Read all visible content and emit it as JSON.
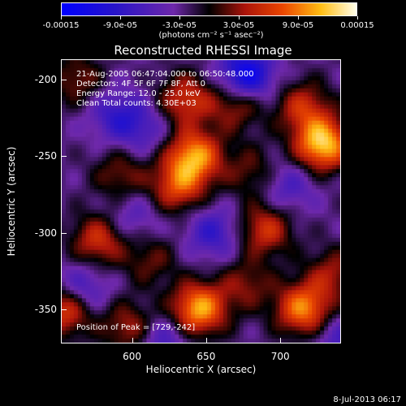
{
  "colorbar": {
    "ticks": [
      "-0.00015",
      "-9.0e-05",
      "-3.0e-05",
      "3.0e-05",
      "9.0e-05",
      "0.00015"
    ],
    "unit": "(photons cm⁻² s⁻¹ asec⁻²)"
  },
  "title": "Reconstructed RHESSI Image",
  "info": {
    "time": "21-Aug-2005 06:47:04.000 to 06:50:48.000",
    "detectors": "Detectors: 4F 5F 6F 7F 8F, Att 0",
    "energy": "Energy Range: 12.0 - 25.0 keV",
    "method": "Clean     Total counts: 4.30E+03"
  },
  "peak_label": "Position of Peak = [729,-242]",
  "footer": "8-Jul-2013 06:17",
  "chart_data": {
    "type": "heatmap",
    "title": "Reconstructed RHESSI Image",
    "xlabel": "Heliocentric X (arcsec)",
    "ylabel": "Heliocentric Y (arcsec)",
    "xlim": [
      552,
      741
    ],
    "ylim": [
      -372,
      -187
    ],
    "xticks": [
      600,
      650,
      700
    ],
    "yticks": [
      -200,
      -250,
      -300,
      -350
    ],
    "colorbar_range": [
      -0.00015,
      0.00015
    ],
    "peak": [
      729,
      -242
    ],
    "colormap": "blue-purple-red-yellow-white",
    "blobs": [
      {
        "x": 729,
        "y": -242,
        "v": 1.0
      },
      {
        "x": 642,
        "y": -250,
        "v": 0.85
      },
      {
        "x": 645,
        "y": -350,
        "v": 0.9
      },
      {
        "x": 716,
        "y": -350,
        "v": 0.8
      },
      {
        "x": 690,
        "y": -298,
        "v": 0.55
      },
      {
        "x": 631,
        "y": -270,
        "v": 0.6
      },
      {
        "x": 716,
        "y": -218,
        "v": 0.5
      },
      {
        "x": 636,
        "y": -213,
        "v": 0.55
      },
      {
        "x": 670,
        "y": -216,
        "v": 0.45
      },
      {
        "x": 577,
        "y": -305,
        "v": 0.55
      },
      {
        "x": 592,
        "y": -262,
        "v": 0.35
      },
      {
        "x": 563,
        "y": -200,
        "v": 0.35
      },
      {
        "x": 555,
        "y": -350,
        "v": 0.7
      },
      {
        "x": 598,
        "y": -362,
        "v": 0.45
      },
      {
        "x": 736,
        "y": -327,
        "v": 0.4
      },
      {
        "x": 680,
        "y": -260,
        "v": 0.3
      },
      {
        "x": 612,
        "y": -318,
        "v": 0.3
      },
      {
        "x": 677,
        "y": -334,
        "v": 0.35
      },
      {
        "x": 606,
        "y": -232,
        "v": -0.3
      },
      {
        "x": 677,
        "y": -197,
        "v": -0.75
      },
      {
        "x": 565,
        "y": -338,
        "v": -0.45
      },
      {
        "x": 588,
        "y": -222,
        "v": -0.35
      },
      {
        "x": 706,
        "y": -270,
        "v": -0.3
      },
      {
        "x": 655,
        "y": -300,
        "v": -0.4
      },
      {
        "x": 620,
        "y": -370,
        "v": -0.35
      },
      {
        "x": 740,
        "y": -370,
        "v": -0.3
      },
      {
        "x": 600,
        "y": -290,
        "v": -0.25
      }
    ]
  }
}
